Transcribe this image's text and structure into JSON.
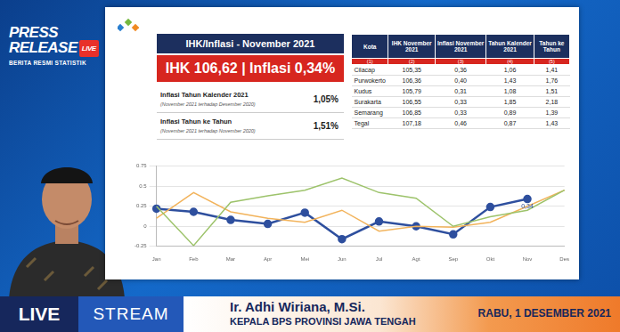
{
  "overlay": {
    "badge_title": "PRESS RELEASE",
    "badge_live": "LIVE",
    "badge_subtitle": "BERITA RESMI STATISTIK",
    "live": "LIVE",
    "stream": "STREAM",
    "speaker_name": "Ir. Adhi Wiriana, M.Si.",
    "speaker_role": "KEPALA BPS PROVINSI JAWA TENGAH",
    "date": "RABU, 1 DESEMBER 2021"
  },
  "slide": {
    "header": "IHK/Inflasi - November 2021",
    "headline": "IHK 106,62 | Inflasi 0,34%",
    "summary": [
      {
        "label": "Inflasi Tahun Kalender 2021",
        "note": "(November 2021 terhadap Desember 2020)",
        "value": "1,05%"
      },
      {
        "label": "Inflasi Tahun ke Tahun",
        "note": "(November 2021 terhadap November 2020)",
        "value": "1,51%"
      }
    ],
    "table": {
      "columns": [
        "Kota",
        "IHK November 2021",
        "Inflasi November 2021",
        "Tahun Kalender 2021",
        "Tahun ke Tahun"
      ],
      "column_numbers": [
        "(1)",
        "(2)",
        "(3)",
        "(4)",
        "(5)"
      ],
      "rows": [
        [
          "Cilacap",
          "105,35",
          "0,36",
          "1,06",
          "1,41"
        ],
        [
          "Purwokerto",
          "106,36",
          "0,40",
          "1,43",
          "1,76"
        ],
        [
          "Kudus",
          "105,79",
          "0,31",
          "1,08",
          "1,51"
        ],
        [
          "Surakarta",
          "106,55",
          "0,33",
          "1,85",
          "2,18"
        ],
        [
          "Semarang",
          "106,85",
          "0,33",
          "0,89",
          "1,39"
        ],
        [
          "Tegal",
          "107,18",
          "0,46",
          "0,87",
          "1,43"
        ]
      ]
    }
  },
  "chart_data": {
    "type": "line",
    "categories": [
      "Jan",
      "Feb",
      "Mar",
      "Apr",
      "Mei",
      "Jun",
      "Jul",
      "Agt",
      "Sep",
      "Okt",
      "Nov",
      "Des"
    ],
    "series": [
      {
        "color": "#9dc36b",
        "marker": "none",
        "values": [
          0.25,
          -0.24,
          0.3,
          0.38,
          0.45,
          0.6,
          0.42,
          0.35,
          0.0,
          0.12,
          0.2,
          0.45
        ]
      },
      {
        "color": "#f2b35b",
        "marker": "none",
        "values": [
          0.1,
          0.42,
          0.18,
          0.1,
          0.05,
          0.2,
          -0.06,
          0.0,
          -0.01,
          0.05,
          0.25,
          0.45
        ]
      },
      {
        "color": "#2e4f9e",
        "marker": "circle",
        "values": [
          0.22,
          0.18,
          0.08,
          0.03,
          0.17,
          -0.16,
          0.06,
          0.0,
          -0.1,
          0.24,
          0.34,
          null
        ],
        "value_labels": [
          null,
          null,
          null,
          null,
          null,
          null,
          null,
          null,
          null,
          null,
          "0,34",
          null
        ]
      }
    ],
    "ylim": [
      -0.25,
      0.75
    ],
    "yticks": [
      -0.25,
      0,
      0.25,
      0.5,
      0.75
    ],
    "grid": true
  }
}
